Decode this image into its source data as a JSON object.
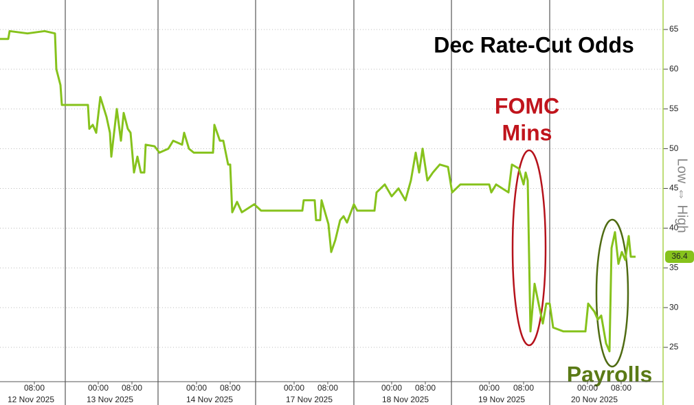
{
  "chart_data": {
    "type": "line",
    "title": "Dec Rate-Cut Odds",
    "y_label": "Low ⇔ High",
    "annotations": [
      "FOMC",
      "Mins",
      "Payrolls"
    ],
    "color": "#86c21c",
    "grid": true,
    "ylim": [
      20.68,
      68.71
    ],
    "yticks": [
      25,
      30,
      35,
      40,
      45,
      50,
      55,
      60,
      65
    ],
    "xlim": [
      0,
      965
    ],
    "xticks": [
      {
        "value": 50,
        "label": "08:00"
      },
      {
        "value": 143,
        "label": "00:00"
      },
      {
        "value": 192,
        "label": "08:00"
      },
      {
        "value": 286,
        "label": "00:00"
      },
      {
        "value": 335,
        "label": "08:00"
      },
      {
        "value": 428,
        "label": "00:00"
      },
      {
        "value": 477,
        "label": "08:00"
      },
      {
        "value": 570,
        "label": "00:00"
      },
      {
        "value": 619,
        "label": "08:00"
      },
      {
        "value": 712,
        "label": "00:00"
      },
      {
        "value": 762,
        "label": "08:00"
      },
      {
        "value": 855,
        "label": "00:00"
      },
      {
        "value": 904,
        "label": "08:00"
      }
    ],
    "x_day_labels": [
      {
        "value": 45,
        "label": "12 Nov 2025"
      },
      {
        "value": 160,
        "label": "13 Nov 2025"
      },
      {
        "value": 305,
        "label": "14 Nov 2025"
      },
      {
        "value": 450,
        "label": "17 Nov 2025"
      },
      {
        "value": 590,
        "label": "18 Nov 2025"
      },
      {
        "value": 730,
        "label": "19 Nov 2025"
      },
      {
        "value": 865,
        "label": "20 Nov 2025"
      }
    ],
    "x_day_breaks": [
      95,
      230,
      372,
      515,
      657,
      800
    ],
    "x": [
      0,
      12,
      14,
      40,
      65,
      80,
      82,
      88,
      90,
      128,
      130,
      135,
      140,
      146,
      155,
      160,
      162,
      170,
      176,
      180,
      186,
      190,
      195,
      200,
      205,
      210,
      212,
      225,
      232,
      245,
      252,
      265,
      268,
      275,
      282,
      310,
      312,
      320,
      325,
      332,
      335,
      338,
      345,
      352,
      370,
      380,
      440,
      442,
      458,
      460,
      466,
      468,
      478,
      482,
      488,
      495,
      500,
      505,
      515,
      520,
      545,
      548,
      560,
      570,
      580,
      590,
      598,
      605,
      610,
      615,
      622,
      630,
      640,
      652,
      658,
      670,
      712,
      715,
      722,
      740,
      745,
      755,
      762,
      765,
      768,
      772,
      778,
      785,
      790,
      795,
      800,
      805,
      820,
      852,
      856,
      865,
      870,
      875,
      882,
      887,
      890,
      895,
      900,
      905,
      910,
      915,
      918,
      925
    ],
    "values": [
      63.8,
      63.8,
      64.8,
      64.5,
      64.8,
      64.5,
      60,
      58,
      55.5,
      55.5,
      52.5,
      53,
      52,
      56.5,
      54,
      52,
      49,
      55,
      51,
      54.5,
      52.5,
      52,
      47,
      49,
      47,
      47,
      50.5,
      50.3,
      49.5,
      50,
      51,
      50.5,
      52,
      50,
      49.5,
      49.5,
      53,
      51,
      51,
      48,
      48,
      42,
      43.3,
      42,
      43,
      42.2,
      42.2,
      43.5,
      43.5,
      41,
      41,
      43.5,
      40.5,
      37,
      38.5,
      41,
      41.5,
      40.7,
      43,
      42.2,
      42.2,
      44.5,
      45.5,
      44,
      45,
      43.5,
      46,
      49.5,
      47,
      50,
      46,
      47,
      48,
      47.7,
      44.5,
      45.5,
      45.5,
      44.5,
      45.5,
      44.5,
      48,
      47.5,
      45.5,
      47,
      46,
      27,
      33,
      30,
      28,
      30.5,
      30.5,
      27.5,
      27,
      27,
      30.5,
      29.5,
      28.5,
      29,
      25.5,
      24.5,
      37.5,
      39.5,
      35.5,
      37,
      36,
      39,
      36.4,
      36.4
    ]
  }
}
